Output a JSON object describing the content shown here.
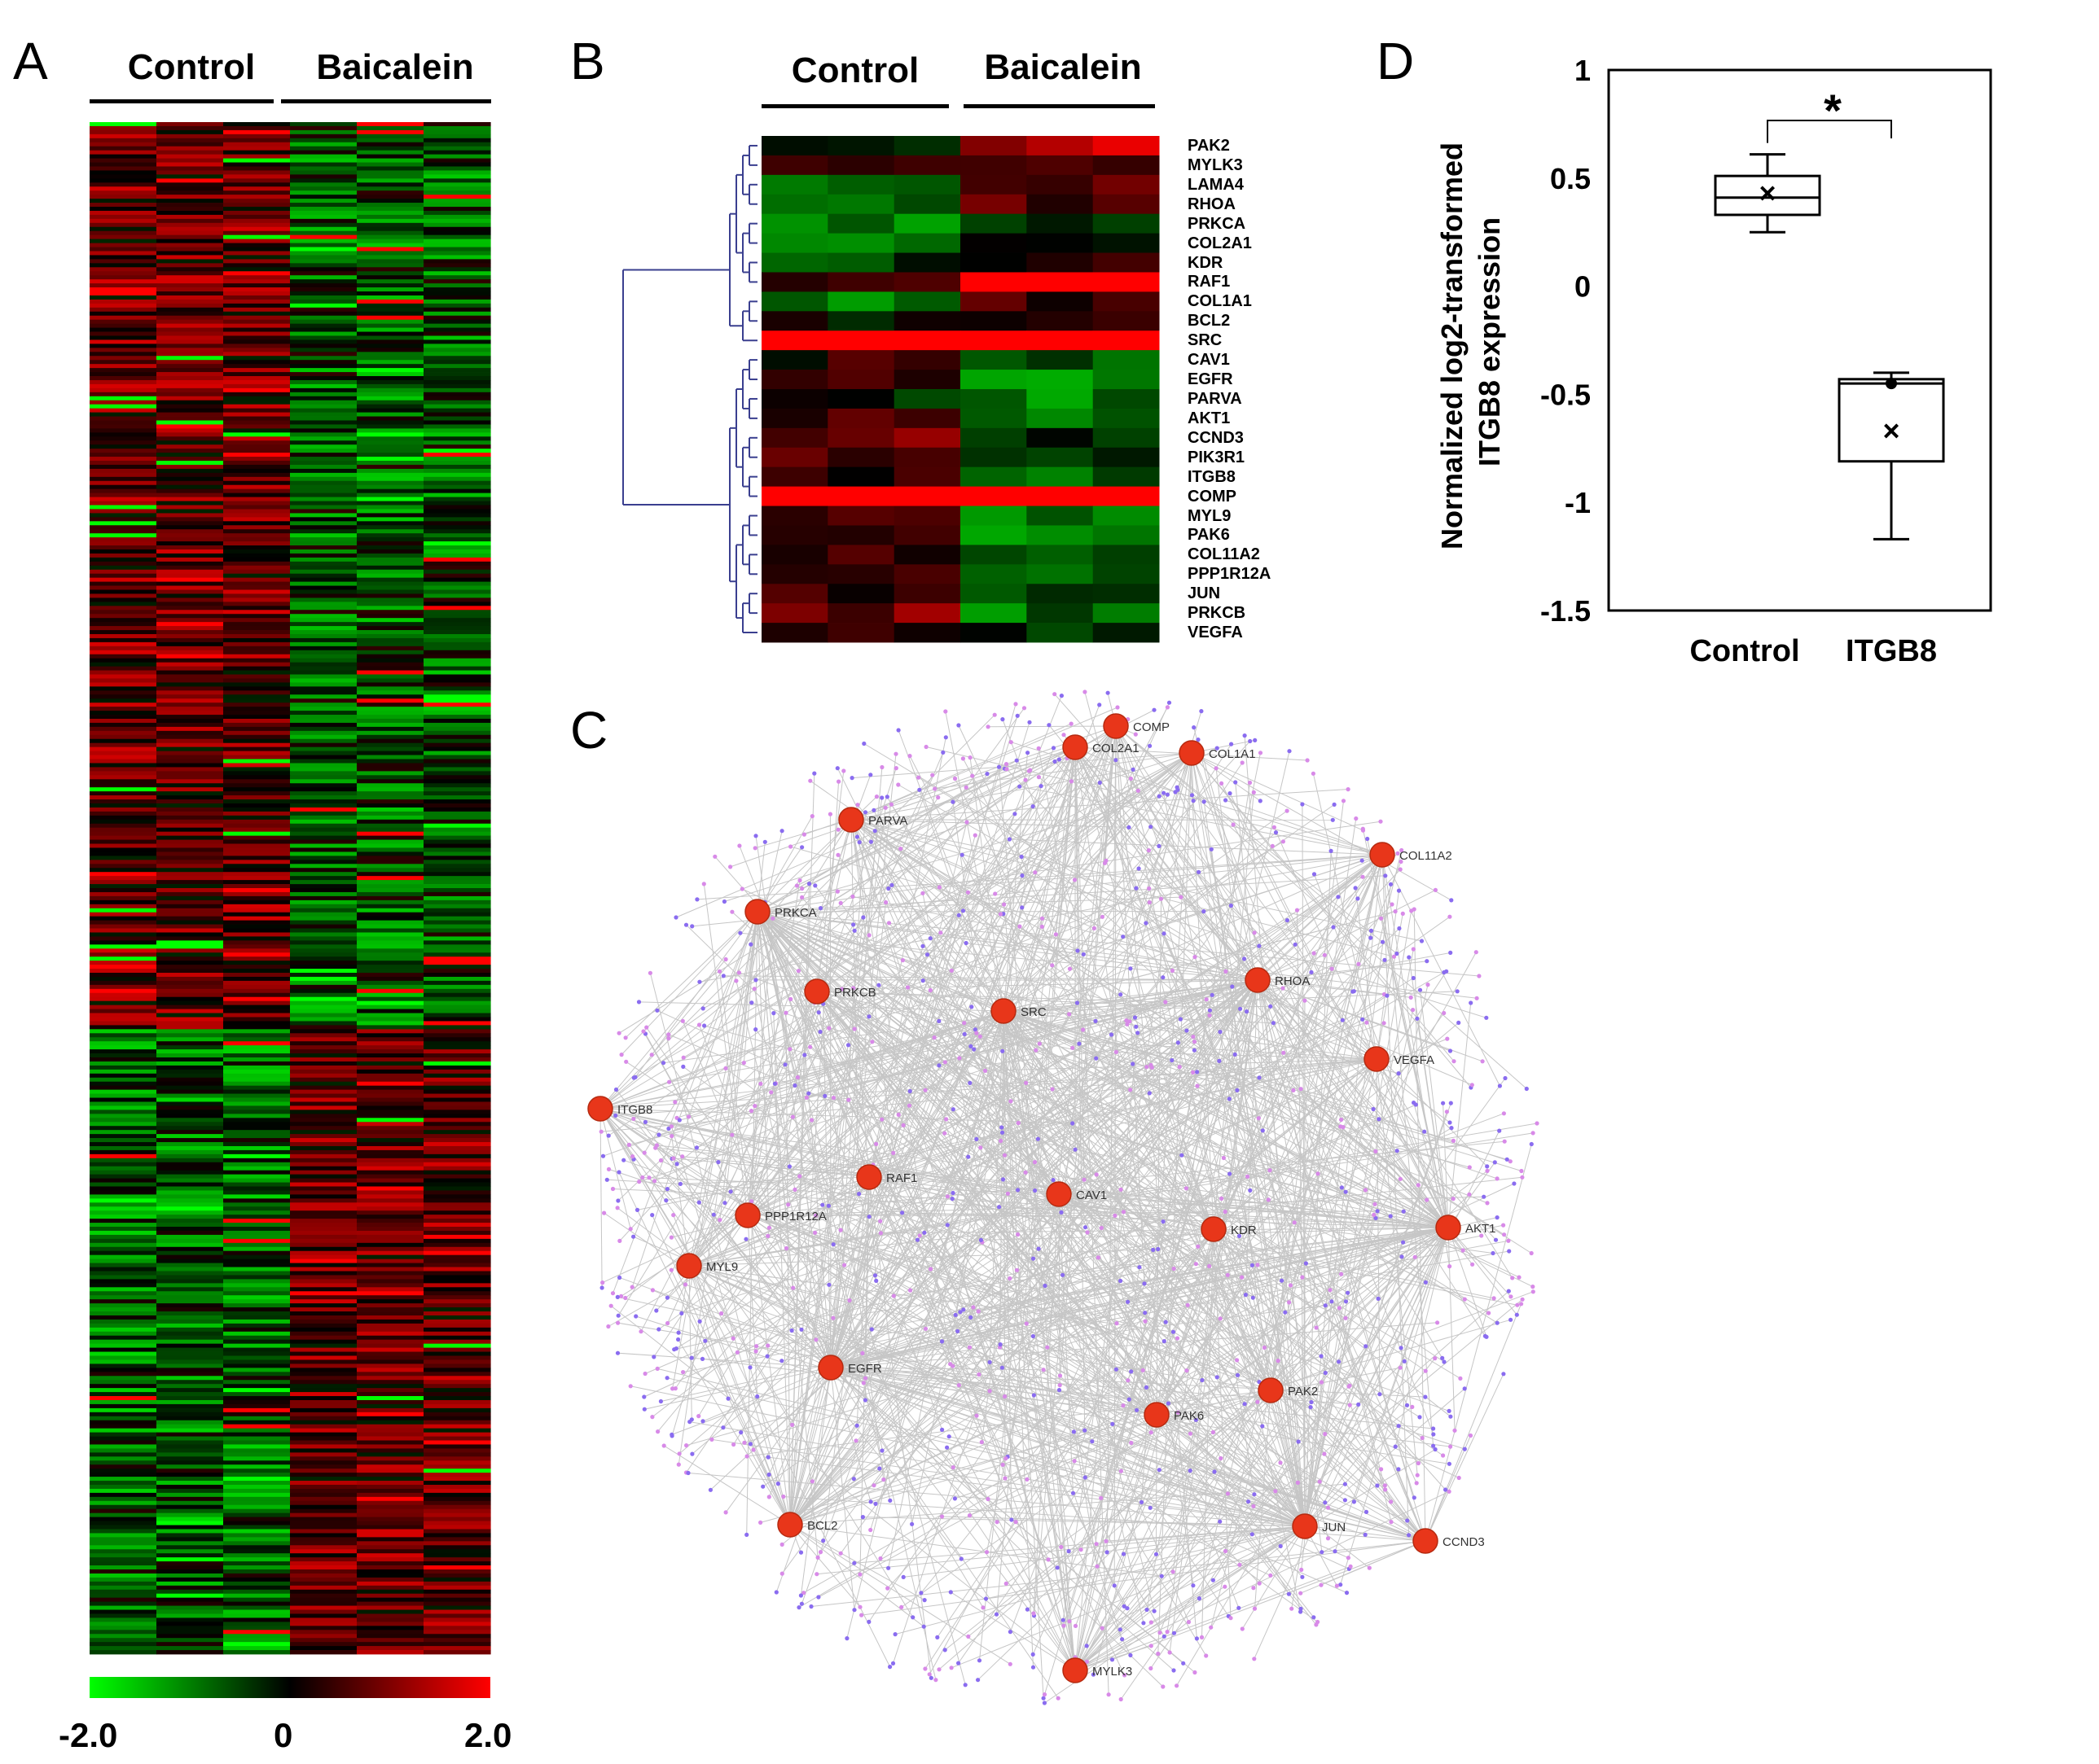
{
  "panels": {
    "a": "A",
    "b": "B",
    "c": "C",
    "d": "D"
  },
  "groups": {
    "control": "Control",
    "baicalein": "Baicalein"
  },
  "colorscale": {
    "min_label": "-2.0",
    "mid_label": "0",
    "max_label": "2.0",
    "low_color": "#00ff00",
    "mid_color": "#000000",
    "high_color": "#ff0000"
  },
  "genes_b": [
    "PAK2",
    "MYLK3",
    "LAMA4",
    "RHOA",
    "PRKCA",
    "COL2A1",
    "KDR",
    "RAF1",
    "COL1A1",
    "BCL2",
    "SRC",
    "CAV1",
    "EGFR",
    "PARVA",
    "AKT1",
    "CCND3",
    "PIK3R1",
    "ITGB8",
    "COMP",
    "MYL9",
    "PAK6",
    "COL11A2",
    "PPP1R12A",
    "JUN",
    "PRKCB",
    "VEGFA"
  ],
  "network_nodes": [
    "COMP",
    "COL2A1",
    "COL1A1",
    "PARVA",
    "COL11A2",
    "PRKCA",
    "PRKCB",
    "SRC",
    "RHOA",
    "VEGFA",
    "ITGB8",
    "RAF1",
    "CAV1",
    "PPP1R12A",
    "KDR",
    "AKT1",
    "MYL9",
    "EGFR",
    "PAK2",
    "PAK6",
    "BCL2",
    "JUN",
    "CCND3",
    "MYLK3"
  ],
  "chart_data": {
    "type": "box",
    "title": "",
    "xlabel": "",
    "ylabel": "Normalized log2-transformed ITGB8 expression",
    "categories": [
      "Control",
      "ITGB8"
    ],
    "ylim": [
      -1.5,
      1
    ],
    "yticks": [
      "1",
      "0.5",
      "0",
      "-0.5",
      "-1",
      "-1.5"
    ],
    "ytick_values": [
      1,
      0.5,
      0,
      -0.5,
      -1,
      -1.5
    ],
    "boxes": [
      {
        "name": "Control",
        "min": 0.25,
        "q1": 0.33,
        "median": 0.41,
        "q3": 0.51,
        "max": 0.61,
        "mean": 0.43,
        "outlier": null
      },
      {
        "name": "ITGB8",
        "min": -1.17,
        "q1": -0.81,
        "median": -0.45,
        "q3": -0.43,
        "max": -0.4,
        "mean": -0.67,
        "outlier": -0.45
      }
    ],
    "significance": "*"
  }
}
